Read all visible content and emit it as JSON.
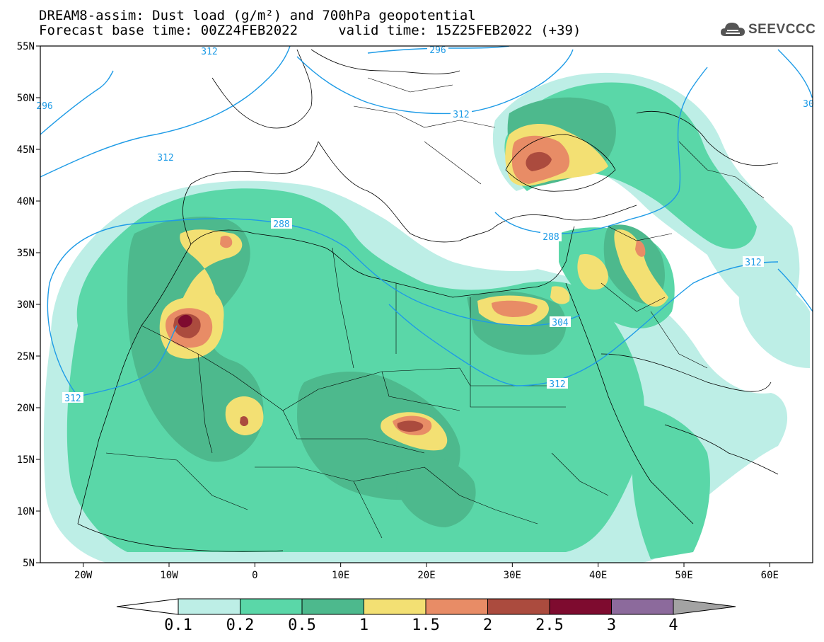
{
  "header": {
    "line1": "DREAM8-assim: Dust load (g/m²) and 700hPa geopotential",
    "line2": "Forecast base time: 00Z24FEB2022     valid time: 15Z25FEB2022 (+39)"
  },
  "logo": {
    "text": "SEEVCCC",
    "icon": "cloud-icon"
  },
  "map": {
    "lon_range": [
      -25,
      65
    ],
    "lat_range": [
      5,
      55
    ],
    "lat_ticks": [
      "55N",
      "50N",
      "45N",
      "40N",
      "35N",
      "30N",
      "25N",
      "20N",
      "15N",
      "10N",
      "5N"
    ],
    "lon_ticks": [
      "20W",
      "10W",
      "0",
      "10E",
      "20E",
      "30E",
      "40E",
      "50E",
      "60E"
    ],
    "contour_labels": [
      "312",
      "296",
      "312",
      "288",
      "296",
      "312",
      "288",
      "312",
      "304",
      "312",
      "312",
      "30"
    ]
  },
  "colorbar": {
    "colors": [
      "#bdeee6",
      "#5ad7a8",
      "#4db98d",
      "#f3e073",
      "#e88c66",
      "#ab4b3e",
      "#7e0b2f",
      "#8c6a9c"
    ],
    "ticks": [
      "0.1",
      "0.2",
      "0.5",
      "1",
      "1.5",
      "2",
      "2.5",
      "3",
      "4"
    ],
    "under_color": "#ffffff",
    "over_color": "#a3a3a3"
  }
}
